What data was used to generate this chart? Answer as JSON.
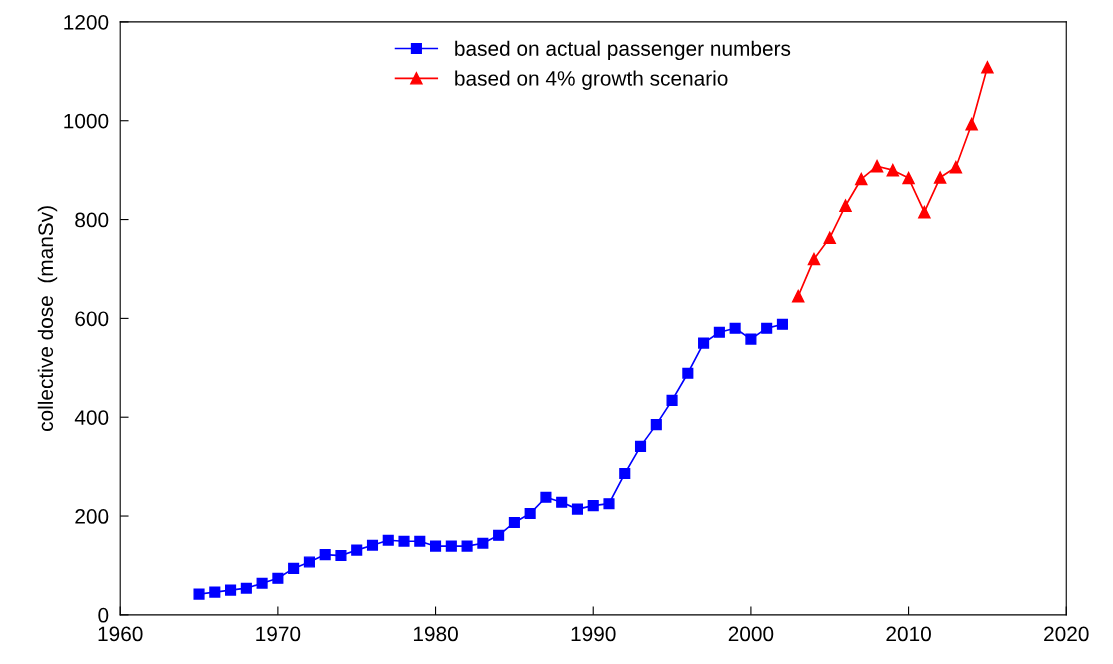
{
  "chart_data": {
    "type": "line",
    "ylabel": "collective dose  (manSv)",
    "xlim": [
      1960,
      2020
    ],
    "xticks": [
      1960,
      1970,
      1980,
      1990,
      2000,
      2010,
      2020
    ],
    "ylim": [
      0,
      1200
    ],
    "yticks": [
      0,
      200,
      400,
      600,
      800,
      1000,
      1200
    ],
    "grid": false,
    "legend": "top",
    "series": [
      {
        "name": "based on actual passenger numbers",
        "color": "#0000ff",
        "marker": "square",
        "x": [
          1965,
          1966,
          1967,
          1968,
          1969,
          1970,
          1971,
          1972,
          1973,
          1974,
          1975,
          1976,
          1977,
          1978,
          1979,
          1980,
          1981,
          1982,
          1983,
          1984,
          1985,
          1986,
          1987,
          1988,
          1989,
          1990,
          1991,
          1992,
          1993,
          1994,
          1995,
          1996,
          1997,
          1998,
          1999,
          2000,
          2001,
          2002
        ],
        "values": [
          42,
          46,
          50,
          54,
          64,
          74,
          94,
          107,
          122,
          120,
          131,
          141,
          151,
          149,
          149,
          139,
          139,
          139,
          145,
          161,
          187,
          205,
          238,
          228,
          214,
          221,
          225,
          286,
          341,
          385,
          434,
          489,
          550,
          572,
          580,
          558,
          580,
          588
        ]
      },
      {
        "name": "based on 4% growth scenario",
        "color": "#ff0000",
        "marker": "triangle",
        "x": [
          2003,
          2004,
          2005,
          2006,
          2007,
          2008,
          2009,
          2010,
          2011,
          2012,
          2013,
          2014,
          2015
        ],
        "values": [
          645,
          720,
          763,
          828,
          882,
          908,
          900,
          884,
          815,
          885,
          906,
          993,
          1108
        ]
      }
    ]
  }
}
